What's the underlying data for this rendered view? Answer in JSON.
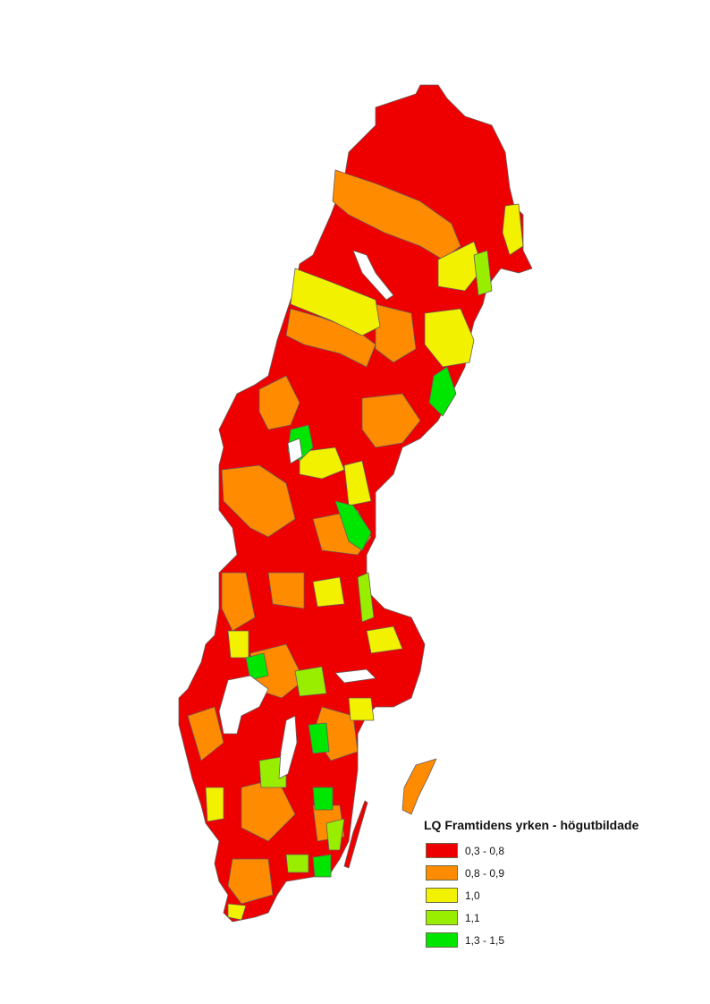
{
  "legend": {
    "title": "LQ Framtidens yrken - högutbildade",
    "classes": [
      {
        "label": "0,3 - 0,8",
        "color": "#ee0000"
      },
      {
        "label": "0,8 - 0,9",
        "color": "#ff8c00"
      },
      {
        "label": "1,0",
        "color": "#f2f200"
      },
      {
        "label": "1,1",
        "color": "#99ee00"
      },
      {
        "label": "1,3 - 1,5",
        "color": "#00e600"
      }
    ]
  },
  "map": {
    "subject": "Sweden municipalities choropleth",
    "border_color": "#6b5a5a",
    "water_color": "#ffffff"
  }
}
